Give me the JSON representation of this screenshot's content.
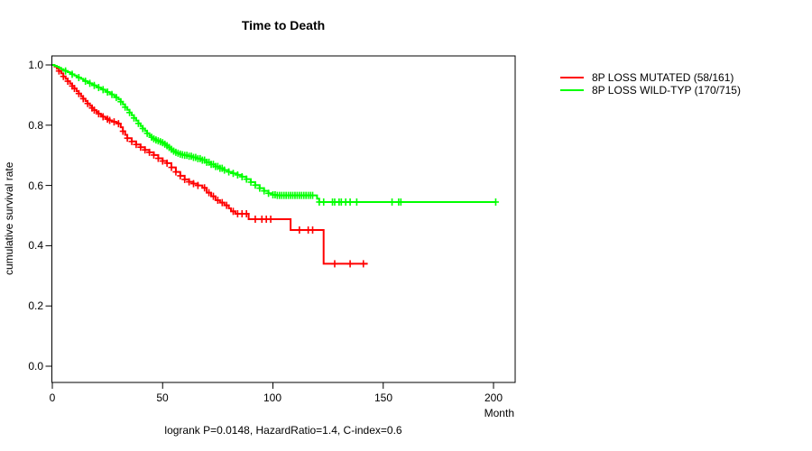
{
  "title": "Time to Death",
  "axes": {
    "y": {
      "label": "cumulative survival rate",
      "ticks": [
        "1.0",
        "0.8",
        "0.6",
        "0.4",
        "0.2",
        "0.0"
      ]
    },
    "x": {
      "label": "Month",
      "ticks": [
        "0",
        "50",
        "100",
        "150",
        "200"
      ]
    }
  },
  "legend": [
    {
      "label": "8P LOSS MUTATED (58/161)",
      "color": "#ff0000"
    },
    {
      "label": "8P LOSS WILD-TYP (170/715)",
      "color": "#00ff00"
    }
  ],
  "caption": "logrank P=0.0148, HazardRatio=1.4, C-index=0.6",
  "chart_data": {
    "type": "line",
    "subtype": "kaplan-meier-step-curves",
    "title": "Time to Death",
    "xlabel": "Month",
    "ylabel": "cumulative survival rate",
    "xlim": [
      0,
      210
    ],
    "ylim": [
      0.0,
      1.0
    ],
    "x_ticks": [
      0,
      50,
      100,
      150,
      200
    ],
    "y_ticks": [
      0.0,
      0.2,
      0.4,
      0.6,
      0.8,
      1.0
    ],
    "grid": false,
    "legend_position": "right-outside",
    "annotation": "logrank P=0.0148, HazardRatio=1.4, C-index=0.6",
    "series": [
      {
        "name": "8P LOSS MUTATED (58/161)",
        "color": "#ff0000",
        "events_ratio": "58/161",
        "points": [
          [
            0,
            1.0
          ],
          [
            1,
            0.995
          ],
          [
            2,
            0.988
          ],
          [
            3,
            0.98
          ],
          [
            4,
            0.972
          ],
          [
            5,
            0.962
          ],
          [
            6,
            0.954
          ],
          [
            7,
            0.946
          ],
          [
            8,
            0.938
          ],
          [
            9,
            0.93
          ],
          [
            10,
            0.922
          ],
          [
            11,
            0.913
          ],
          [
            12,
            0.905
          ],
          [
            13,
            0.896
          ],
          [
            14,
            0.888
          ],
          [
            15,
            0.88
          ],
          [
            16,
            0.872
          ],
          [
            17,
            0.864
          ],
          [
            18,
            0.857
          ],
          [
            19,
            0.85
          ],
          [
            20,
            0.844
          ],
          [
            21,
            0.838
          ],
          [
            22,
            0.833
          ],
          [
            23,
            0.828
          ],
          [
            24,
            0.824
          ],
          [
            25,
            0.82
          ],
          [
            26,
            0.816
          ],
          [
            27,
            0.813
          ],
          [
            28,
            0.811
          ],
          [
            29,
            0.809
          ],
          [
            30,
            0.805
          ],
          [
            31,
            0.793
          ],
          [
            32,
            0.78
          ],
          [
            33,
            0.768
          ],
          [
            34,
            0.757
          ],
          [
            36,
            0.746
          ],
          [
            38,
            0.736
          ],
          [
            40,
            0.727
          ],
          [
            42,
            0.718
          ],
          [
            44,
            0.71
          ],
          [
            46,
            0.701
          ],
          [
            48,
            0.69
          ],
          [
            50,
            0.681
          ],
          [
            52,
            0.674
          ],
          [
            54,
            0.66
          ],
          [
            56,
            0.645
          ],
          [
            58,
            0.632
          ],
          [
            60,
            0.62
          ],
          [
            62,
            0.612
          ],
          [
            64,
            0.606
          ],
          [
            66,
            0.6
          ],
          [
            68,
            0.592
          ],
          [
            70,
            0.576
          ],
          [
            72,
            0.564
          ],
          [
            74,
            0.551
          ],
          [
            76,
            0.543
          ],
          [
            78,
            0.534
          ],
          [
            80,
            0.524
          ],
          [
            81,
            0.514
          ],
          [
            83,
            0.506
          ],
          [
            89,
            0.488
          ],
          [
            108,
            0.452
          ],
          [
            123,
            0.34
          ],
          [
            143,
            0.34
          ]
        ],
        "censor_months": [
          3,
          5,
          7,
          9,
          10,
          12,
          14,
          16,
          18,
          19,
          21,
          23,
          25,
          26,
          28,
          30,
          32,
          34,
          36,
          38,
          40,
          42,
          44,
          46,
          48,
          50,
          52,
          54,
          56,
          58,
          60,
          62,
          64,
          66,
          69,
          71,
          73,
          75,
          77,
          79,
          82,
          84,
          86,
          88,
          92,
          95,
          97,
          99,
          112,
          116,
          118,
          128,
          135,
          141
        ]
      },
      {
        "name": "8P LOSS WILD-TYP (170/715)",
        "color": "#00ff00",
        "events_ratio": "170/715",
        "points": [
          [
            0,
            1.0
          ],
          [
            1,
            0.997
          ],
          [
            2,
            0.994
          ],
          [
            3,
            0.99
          ],
          [
            4,
            0.986
          ],
          [
            5,
            0.983
          ],
          [
            6,
            0.98
          ],
          [
            7,
            0.976
          ],
          [
            8,
            0.973
          ],
          [
            9,
            0.969
          ],
          [
            10,
            0.965
          ],
          [
            11,
            0.961
          ],
          [
            12,
            0.958
          ],
          [
            13,
            0.954
          ],
          [
            14,
            0.95
          ],
          [
            15,
            0.946
          ],
          [
            16,
            0.943
          ],
          [
            17,
            0.939
          ],
          [
            18,
            0.936
          ],
          [
            19,
            0.932
          ],
          [
            20,
            0.929
          ],
          [
            21,
            0.925
          ],
          [
            22,
            0.921
          ],
          [
            23,
            0.918
          ],
          [
            24,
            0.914
          ],
          [
            25,
            0.91
          ],
          [
            26,
            0.906
          ],
          [
            27,
            0.902
          ],
          [
            28,
            0.897
          ],
          [
            29,
            0.892
          ],
          [
            30,
            0.886
          ],
          [
            31,
            0.878
          ],
          [
            32,
            0.869
          ],
          [
            33,
            0.86
          ],
          [
            34,
            0.851
          ],
          [
            35,
            0.842
          ],
          [
            36,
            0.833
          ],
          [
            37,
            0.824
          ],
          [
            38,
            0.815
          ],
          [
            39,
            0.806
          ],
          [
            40,
            0.797
          ],
          [
            41,
            0.789
          ],
          [
            42,
            0.781
          ],
          [
            43,
            0.773
          ],
          [
            44,
            0.766
          ],
          [
            45,
            0.76
          ],
          [
            46,
            0.755
          ],
          [
            47,
            0.751
          ],
          [
            48,
            0.748
          ],
          [
            49,
            0.745
          ],
          [
            50,
            0.742
          ],
          [
            51,
            0.737
          ],
          [
            52,
            0.732
          ],
          [
            53,
            0.726
          ],
          [
            54,
            0.72
          ],
          [
            55,
            0.714
          ],
          [
            56,
            0.71
          ],
          [
            57,
            0.707
          ],
          [
            58,
            0.704
          ],
          [
            59,
            0.702
          ],
          [
            60,
            0.7
          ],
          [
            62,
            0.697
          ],
          [
            64,
            0.693
          ],
          [
            66,
            0.689
          ],
          [
            68,
            0.684
          ],
          [
            70,
            0.677
          ],
          [
            72,
            0.67
          ],
          [
            74,
            0.663
          ],
          [
            76,
            0.657
          ],
          [
            78,
            0.651
          ],
          [
            80,
            0.645
          ],
          [
            82,
            0.64
          ],
          [
            84,
            0.635
          ],
          [
            86,
            0.629
          ],
          [
            88,
            0.621
          ],
          [
            90,
            0.611
          ],
          [
            92,
            0.601
          ],
          [
            94,
            0.591
          ],
          [
            96,
            0.582
          ],
          [
            98,
            0.574
          ],
          [
            100,
            0.569
          ],
          [
            102,
            0.567
          ],
          [
            118,
            0.567
          ],
          [
            120,
            0.556
          ],
          [
            121,
            0.545
          ],
          [
            201,
            0.545
          ]
        ],
        "censor_months": [
          6,
          9,
          12,
          15,
          17,
          19,
          21,
          23,
          25,
          27,
          29,
          31,
          33,
          35,
          37,
          39,
          41,
          43,
          45,
          46,
          47,
          48,
          49,
          50,
          51,
          52,
          53,
          54,
          55,
          56,
          57,
          58,
          59,
          60,
          61,
          62,
          63,
          64,
          65,
          66,
          67,
          68,
          69,
          70,
          71,
          72,
          73,
          74,
          75,
          76,
          77,
          78,
          80,
          82,
          84,
          86,
          88,
          90,
          92,
          94,
          96,
          98,
          100,
          101,
          102,
          103,
          104,
          105,
          106,
          107,
          108,
          109,
          110,
          111,
          112,
          113,
          114,
          115,
          116,
          117,
          118,
          121,
          123,
          127,
          128,
          130,
          131,
          133,
          135,
          138,
          154,
          157,
          158,
          201
        ]
      }
    ]
  }
}
